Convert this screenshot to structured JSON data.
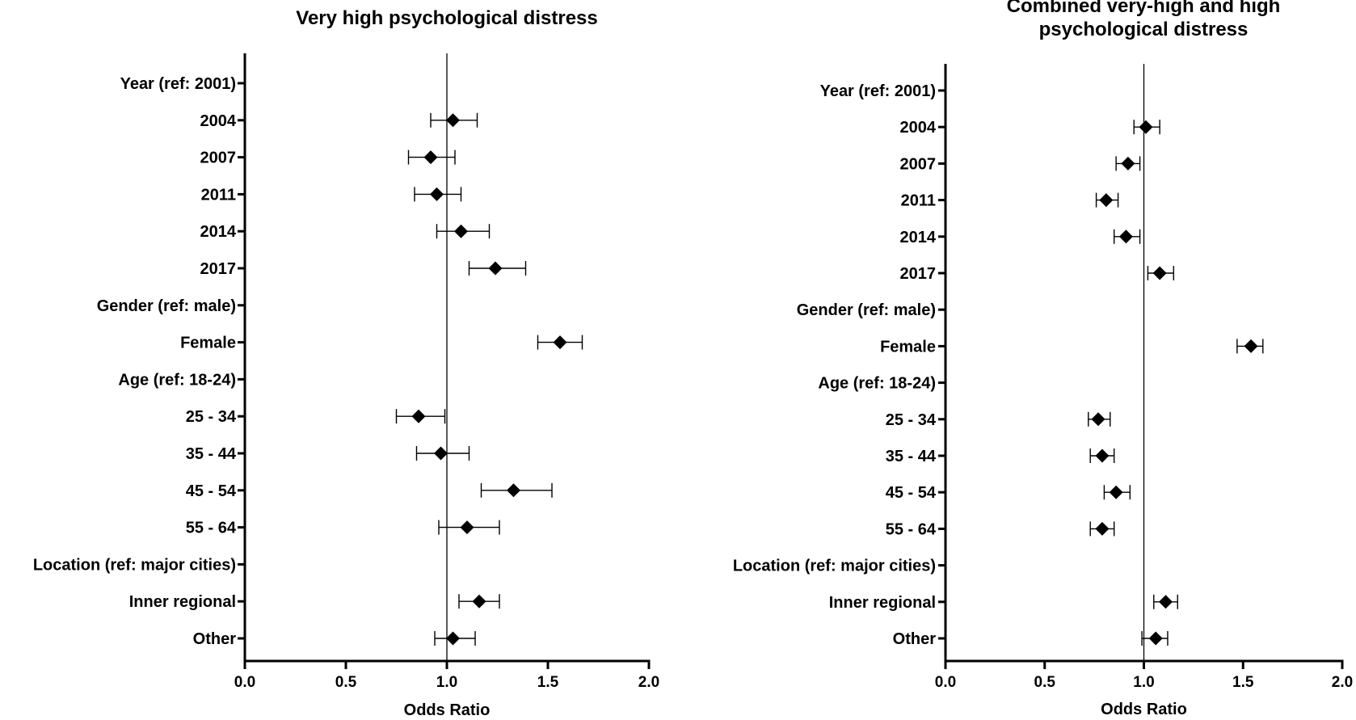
{
  "chart_data": [
    {
      "type": "scatter",
      "title": [
        "Very high psychological distress"
      ],
      "xlabel": "Odds Ratio",
      "ylabel": "",
      "xlim": [
        0,
        2
      ],
      "xticks": [
        "0.0",
        "0.5",
        "1.0",
        "1.5",
        "2.0"
      ],
      "reference_line": 1.0,
      "marker": "diamond",
      "categories": [
        "Year (ref: 2001)",
        "2004",
        "2007",
        "2011",
        "2014",
        "2017",
        "Gender (ref: male)",
        "Female",
        "Age (ref: 18-24)",
        "25 - 34",
        "35 - 44",
        "45 - 54",
        "55 - 64",
        "Location (ref: major cities)",
        "Inner regional",
        "Other"
      ],
      "points": [
        null,
        {
          "or": 1.03,
          "lo": 0.92,
          "hi": 1.15
        },
        {
          "or": 0.92,
          "lo": 0.81,
          "hi": 1.04
        },
        {
          "or": 0.95,
          "lo": 0.84,
          "hi": 1.07
        },
        {
          "or": 1.07,
          "lo": 0.95,
          "hi": 1.21
        },
        {
          "or": 1.24,
          "lo": 1.11,
          "hi": 1.39
        },
        null,
        {
          "or": 1.56,
          "lo": 1.45,
          "hi": 1.67
        },
        null,
        {
          "or": 0.86,
          "lo": 0.75,
          "hi": 0.99
        },
        {
          "or": 0.97,
          "lo": 0.85,
          "hi": 1.11
        },
        {
          "or": 1.33,
          "lo": 1.17,
          "hi": 1.52
        },
        {
          "or": 1.1,
          "lo": 0.96,
          "hi": 1.26
        },
        null,
        {
          "or": 1.16,
          "lo": 1.06,
          "hi": 1.26
        },
        {
          "or": 1.03,
          "lo": 0.94,
          "hi": 1.14
        }
      ]
    },
    {
      "type": "scatter",
      "title": [
        "Combined very-high and high",
        "psychological distress"
      ],
      "xlabel": "Odds Ratio",
      "ylabel": "",
      "xlim": [
        0,
        2
      ],
      "xticks": [
        "0.0",
        "0.5",
        "1.0",
        "1.5",
        "2.0"
      ],
      "reference_line": 1.0,
      "marker": "diamond",
      "categories": [
        "Year (ref: 2001)",
        "2004",
        "2007",
        "2011",
        "2014",
        "2017",
        "Gender (ref: male)",
        "Female",
        "Age (ref: 18-24)",
        "25 - 34",
        "35 - 44",
        "45 - 54",
        "55 - 64",
        "Location (ref: major cities)",
        "Inner regional",
        "Other"
      ],
      "points": [
        null,
        {
          "or": 1.01,
          "lo": 0.95,
          "hi": 1.08
        },
        {
          "or": 0.92,
          "lo": 0.86,
          "hi": 0.98
        },
        {
          "or": 0.81,
          "lo": 0.76,
          "hi": 0.87
        },
        {
          "or": 0.91,
          "lo": 0.85,
          "hi": 0.98
        },
        {
          "or": 1.08,
          "lo": 1.02,
          "hi": 1.15
        },
        null,
        {
          "or": 1.54,
          "lo": 1.47,
          "hi": 1.6
        },
        null,
        {
          "or": 0.77,
          "lo": 0.72,
          "hi": 0.83
        },
        {
          "or": 0.79,
          "lo": 0.73,
          "hi": 0.85
        },
        {
          "or": 0.86,
          "lo": 0.8,
          "hi": 0.93
        },
        {
          "or": 0.79,
          "lo": 0.73,
          "hi": 0.85
        },
        null,
        {
          "or": 1.11,
          "lo": 1.05,
          "hi": 1.17
        },
        {
          "or": 1.06,
          "lo": 0.99,
          "hi": 1.12
        }
      ]
    }
  ]
}
